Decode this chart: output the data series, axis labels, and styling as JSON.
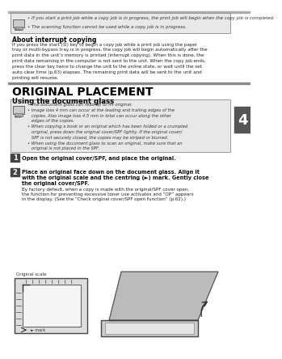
{
  "page_bg": "#ffffff",
  "note_box_bg": "#e8e8e8",
  "note_box_border": "#999999",
  "step_box_bg": "#444444",
  "step_box_text": "#ffffff",
  "tab_bg": "#555555",
  "tab_text": "#ffffff",
  "tab_number": "4",
  "top_rule_color": "#888888",
  "top_bullets": [
    "If you start a print job while a copy job is in progress, the print job will begin when the copy job is completed.",
    "The scanning function cannot be used while a copy job is in progress."
  ],
  "about_heading": "About interrupt copying",
  "about_text": "If you press the start (①) key to begin a copy job while a print job using the paper tray or multi-bypass tray is in progress, the copy job will begin automatically after the print data in the unit’s memory is printed (interrupt copying). When this is done, the print data remaining in the computer is not sent to the unit. When the copy job ends, press the clear key twice to change the unit to the online state, or wait until the set auto clear time (p.63) elapses. The remaining print data will be sent to the unit and printing will resume.",
  "orig_heading": "ORIGINAL PLACEMENT",
  "orig_subheading": "Using the document glass",
  "doc_bullets": [
    "The document glass can read up to A4 original.",
    "Image loss 4 mm can occur at the leading and trailing edges of the copies. Also image loss 4.5 mm in total can occur along the other edges of the copies.",
    "When copying a book or an original which has been folded or a crumpled original, press down the original cover/SPF lightly. If the original cover/SPF is not securely closed, the copies may be striped or blurred.",
    "When using the document glass to scan an original, make sure that an original is not placed in the SPF."
  ],
  "step1_text": "Open the original cover/SPF, and place the original.",
  "step2_bold": "Place an original face down on the document glass. Align it\nwith the original scale and the centring (►) mark. Gently close\nthe original cover/SPF.",
  "step2_normal": "By factory default, when a copy is made with the original/SPF cover open,\nthe function for preventing excessive toner use activates and “OP” appears\nin the display. (See the “Check original cover/SPF open function” (p.62).)",
  "orig_scale_label": "Original scale",
  "mark_label": "► mark"
}
